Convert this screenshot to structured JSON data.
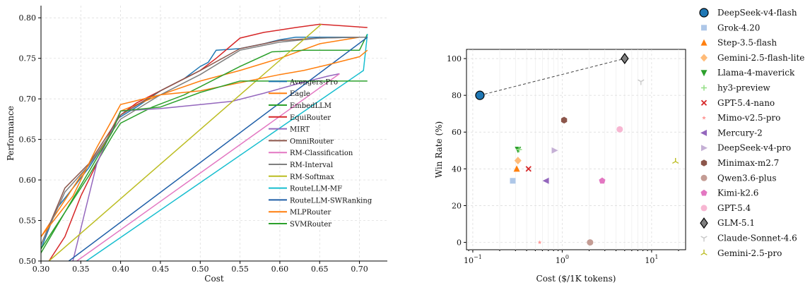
{
  "chart_data": [
    {
      "type": "line",
      "xlabel": "Cost",
      "ylabel": "Performance",
      "xlim": [
        0.3,
        0.735
      ],
      "ylim": [
        0.5,
        0.815
      ],
      "xticks": [
        "0.30",
        "0.35",
        "0.40",
        "0.45",
        "0.50",
        "0.55",
        "0.60",
        "0.65",
        "0.70"
      ],
      "yticks": [
        "0.50",
        "0.55",
        "0.60",
        "0.65",
        "0.70",
        "0.75",
        "0.80"
      ],
      "grid": true,
      "legend_position": "lower-right",
      "series": [
        {
          "name": "Avengers-Pro",
          "color": "#1f77b4",
          "x": [
            0.3,
            0.32,
            0.34,
            0.36,
            0.38,
            0.395,
            0.42,
            0.45,
            0.48,
            0.5,
            0.51,
            0.52,
            0.55,
            0.58,
            0.6,
            0.62,
            0.65,
            0.7,
            0.71
          ],
          "y": [
            0.515,
            0.565,
            0.59,
            0.615,
            0.645,
            0.675,
            0.69,
            0.71,
            0.725,
            0.74,
            0.745,
            0.76,
            0.762,
            0.768,
            0.773,
            0.776,
            0.776,
            0.776,
            0.776
          ]
        },
        {
          "name": "Eagle",
          "color": "#ff7f0e",
          "x": [
            0.3,
            0.32,
            0.35,
            0.38,
            0.4,
            0.45,
            0.5,
            0.55,
            0.6,
            0.65,
            0.7,
            0.71
          ],
          "y": [
            0.53,
            0.56,
            0.605,
            0.645,
            0.685,
            0.705,
            0.722,
            0.735,
            0.75,
            0.768,
            0.776,
            0.776
          ]
        },
        {
          "name": "EmbedLLM",
          "color": "#2ca02c",
          "x": [
            0.3,
            0.33,
            0.36,
            0.39,
            0.4,
            0.44,
            0.48,
            0.52,
            0.55,
            0.59,
            0.63,
            0.7,
            0.71
          ],
          "y": [
            0.515,
            0.56,
            0.605,
            0.655,
            0.67,
            0.69,
            0.705,
            0.725,
            0.74,
            0.758,
            0.76,
            0.76,
            0.78
          ]
        },
        {
          "name": "EquiRouter",
          "color": "#d62728",
          "x": [
            0.31,
            0.33,
            0.35,
            0.37,
            0.39,
            0.4,
            0.42,
            0.45,
            0.48,
            0.5,
            0.52,
            0.55,
            0.58,
            0.6,
            0.62,
            0.65,
            0.71
          ],
          "y": [
            0.5,
            0.53,
            0.58,
            0.62,
            0.665,
            0.68,
            0.695,
            0.71,
            0.725,
            0.735,
            0.75,
            0.775,
            0.782,
            0.785,
            0.788,
            0.792,
            0.788
          ]
        },
        {
          "name": "MIRT",
          "color": "#9467bd",
          "x": [
            0.34,
            0.37,
            0.4,
            0.45,
            0.5,
            0.54,
            0.58,
            0.62,
            0.66,
            0.675
          ],
          "y": [
            0.5,
            0.62,
            0.685,
            0.688,
            0.693,
            0.697,
            0.707,
            0.718,
            0.728,
            0.731
          ]
        },
        {
          "name": "OmniRouter",
          "color": "#8c564b",
          "x": [
            0.3,
            0.33,
            0.36,
            0.38,
            0.4,
            0.45,
            0.5,
            0.55,
            0.6,
            0.65,
            0.7,
            0.71
          ],
          "y": [
            0.52,
            0.59,
            0.62,
            0.65,
            0.68,
            0.71,
            0.735,
            0.762,
            0.772,
            0.775,
            0.776,
            0.776
          ]
        },
        {
          "name": "RM-Classification",
          "color": "#e377c2",
          "x": [
            0.345,
            0.675
          ],
          "y": [
            0.5,
            0.731
          ]
        },
        {
          "name": "RM-Interval",
          "color": "#7f7f7f",
          "x": [
            0.3,
            0.33,
            0.36,
            0.4,
            0.45,
            0.5,
            0.55,
            0.6,
            0.65,
            0.7,
            0.71
          ],
          "y": [
            0.52,
            0.585,
            0.618,
            0.675,
            0.705,
            0.73,
            0.76,
            0.77,
            0.775,
            0.776,
            0.776
          ]
        },
        {
          "name": "RM-Softmax",
          "color": "#bcbd22",
          "x": [
            0.31,
            0.652
          ],
          "y": [
            0.5,
            0.792
          ]
        },
        {
          "name": "RouteLLM-MF",
          "color": "#17becf",
          "x": [
            0.357,
            0.705,
            0.71
          ],
          "y": [
            0.5,
            0.735,
            0.78
          ]
        },
        {
          "name": "RouteLLM-SWRanking",
          "color": "#1f5fa8",
          "x": [
            0.335,
            0.71
          ],
          "y": [
            0.5,
            0.776
          ]
        },
        {
          "name": "MLPRouter",
          "color": "#ff7f0e",
          "x": [
            0.3,
            0.34,
            0.37,
            0.4,
            0.45,
            0.5,
            0.55,
            0.6,
            0.63,
            0.66,
            0.7,
            0.71
          ],
          "y": [
            0.53,
            0.58,
            0.64,
            0.693,
            0.705,
            0.71,
            0.72,
            0.73,
            0.735,
            0.742,
            0.752,
            0.76
          ]
        },
        {
          "name": "SVMRouter",
          "color": "#2ca02c",
          "x": [
            0.3,
            0.33,
            0.36,
            0.39,
            0.4,
            0.45,
            0.5,
            0.55,
            0.6,
            0.65,
            0.7,
            0.71
          ],
          "y": [
            0.51,
            0.56,
            0.61,
            0.66,
            0.685,
            0.69,
            0.708,
            0.722,
            0.722,
            0.722,
            0.722,
            0.722
          ]
        }
      ]
    },
    {
      "type": "scatter",
      "xlabel": "Cost ($/1K tokens)",
      "ylabel": "Win Rate (%)",
      "xscale": "log",
      "xlim": [
        0.085,
        24
      ],
      "ylim": [
        -4,
        105
      ],
      "xticks": [
        0.1,
        1,
        10
      ],
      "yticks": [
        "0",
        "20",
        "40",
        "60",
        "80",
        "100"
      ],
      "grid": true,
      "legend_position": "right-outside",
      "dashed_line": {
        "x": [
          0.12,
          5.0
        ],
        "y": [
          80,
          100
        ]
      },
      "points": [
        {
          "name": "DeepSeek-v4-flash",
          "x": 0.12,
          "y": 80,
          "color": "#1f77b4",
          "marker": "circle-lg"
        },
        {
          "name": "Grok-4.20",
          "x": 0.28,
          "y": 33.5,
          "color": "#aec7e8",
          "marker": "square"
        },
        {
          "name": "Step-3.5-flash",
          "x": 0.31,
          "y": 40,
          "color": "#ff7f0e",
          "marker": "triangle-up"
        },
        {
          "name": "Gemini-2.5-flash-lite",
          "x": 0.32,
          "y": 44.5,
          "color": "#ffbb78",
          "marker": "diamond"
        },
        {
          "name": "Llama-4-maverick",
          "x": 0.32,
          "y": 50.5,
          "color": "#2ca02c",
          "marker": "triangle-down"
        },
        {
          "name": "hy3-preview",
          "x": 0.33,
          "y": 50.5,
          "color": "#98df8a",
          "marker": "plus"
        },
        {
          "name": "GPT-5.4-nano",
          "x": 0.42,
          "y": 40,
          "color": "#d62728",
          "marker": "x"
        },
        {
          "name": "Mimo-v2.5-pro",
          "x": 0.56,
          "y": 0,
          "color": "#ff9896",
          "marker": "star"
        },
        {
          "name": "Mercury-2",
          "x": 0.66,
          "y": 33.5,
          "color": "#9467bd",
          "marker": "triangle-left"
        },
        {
          "name": "DeepSeek-v4-pro",
          "x": 0.82,
          "y": 50,
          "color": "#c5b0d5",
          "marker": "triangle-right"
        },
        {
          "name": "Minimax-m2.7",
          "x": 1.05,
          "y": 66.5,
          "color": "#8c564b",
          "marker": "hexagon"
        },
        {
          "name": "Qwen3.6-plus",
          "x": 2.05,
          "y": 0,
          "color": "#c49c94",
          "marker": "circle"
        },
        {
          "name": "Kimi-k2.6",
          "x": 2.8,
          "y": 33.5,
          "color": "#e377c2",
          "marker": "pentagon"
        },
        {
          "name": "GPT-5.4",
          "x": 4.4,
          "y": 61.5,
          "color": "#f7b6d2",
          "marker": "circle"
        },
        {
          "name": "GLM-5.1",
          "x": 5.0,
          "y": 100,
          "color": "#7f7f7f",
          "marker": "diamond-lg"
        },
        {
          "name": "Claude-Sonnet-4.6",
          "x": 7.6,
          "y": 87.5,
          "color": "#c7c7c7",
          "marker": "tri-down"
        },
        {
          "name": "Gemini-2.5-pro",
          "x": 18.5,
          "y": 44,
          "color": "#bcbd22",
          "marker": "tri-up"
        }
      ]
    }
  ]
}
